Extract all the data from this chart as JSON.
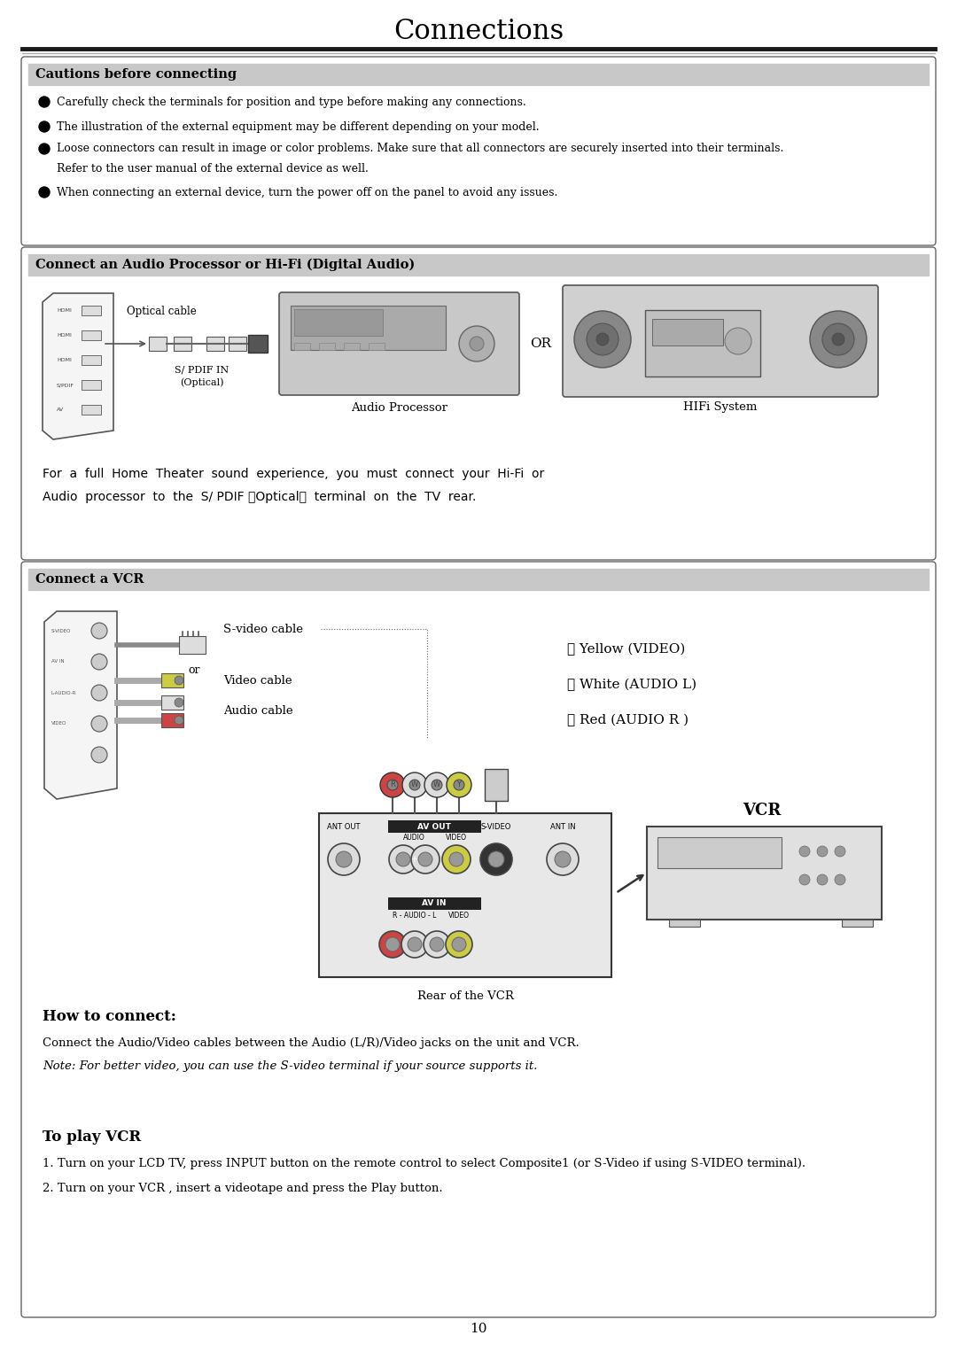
{
  "title": "Connections",
  "title_fontsize": 22,
  "background_color": "#ffffff",
  "page_number": "10",
  "section_bg_color": "#c8c8c8",
  "box_border_color": "#777777",
  "section1_header": "Cautions before connecting",
  "section1_bullets": [
    "Carefully check the terminals for position and type before making any connections.",
    "The illustration of the external equipment may be different depending on your model.",
    "Loose connectors can result in image or color problems. Make sure that all connectors are securely inserted into their terminals.",
    "Refer to the user manual of the external device as well.",
    "When connecting an external device, turn the power off on the panel to avoid any issues."
  ],
  "section2_header": "Connect an Audio Processor or Hi-Fi (Digital Audio)",
  "section2_optical_label": "Optical cable",
  "section2_spdif_label": "S/ PDIF IN\n(Optical)",
  "section2_audio_proc_label": "Audio Processor",
  "section2_hifi_label": "HIFi System",
  "section2_or": "OR",
  "section2_body_line1": "For  a  full  Home  Theater  sound  experience,  you  must  connect  your  Hi-Fi  or",
  "section2_body_line2": "Audio  processor  to  the  S/ PDIF （Optical）  terminal  on  the  TV  rear.",
  "section3_header": "Connect a VCR",
  "section3_svideo": "S-video cable",
  "section3_or": "or",
  "section3_video": "Video cable",
  "section3_audio": "Audio cable",
  "section3_legend": [
    "ⓨ Yellow (VIDEO)",
    "ⓦ White (AUDIO L)",
    "Ⓡ Red (AUDIO R )"
  ],
  "section3_rear": "Rear of the VCR",
  "section3_vcr_label": "VCR",
  "section4_header": "How to connect:",
  "section4_body": "Connect the Audio/Video cables between the Audio (L/R)/Video jacks on the unit and VCR.",
  "section4_note": "Note: For better video, you can use the S-video terminal if your source supports it.",
  "section5_header": "To play VCR",
  "section5_steps": [
    "1. Turn on your LCD TV, press INPUT button on the remote control to select Composite1 (or S-Video if using S-VIDEO terminal).",
    "2. Turn on your VCR , insert a videotape and press the Play button."
  ]
}
